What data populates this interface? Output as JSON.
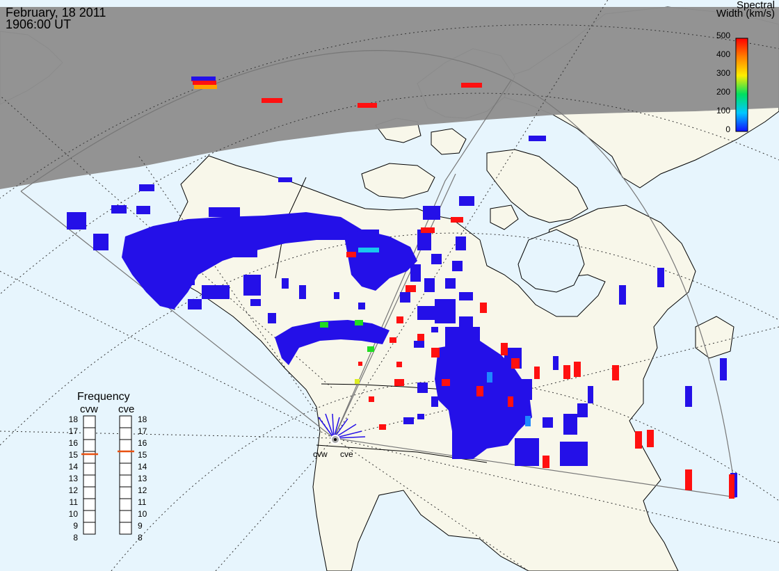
{
  "header": {
    "date": "February, 18 2011",
    "time": "1906:00 UT"
  },
  "colorbar": {
    "title_line1": "Spectral",
    "title_line2": "Width (km/s)",
    "ticks": [
      "500",
      "400",
      "300",
      "200",
      "100",
      "0"
    ]
  },
  "frequency_panel": {
    "title": "Frequency",
    "radars": [
      {
        "name": "cvw",
        "selected": "15"
      },
      {
        "name": "cve",
        "selected": "15"
      }
    ],
    "levels": [
      "18",
      "17",
      "16",
      "15",
      "14",
      "13",
      "12",
      "11",
      "10",
      "9",
      "8"
    ]
  },
  "stations": [
    {
      "name": "cvw"
    },
    {
      "name": "cve"
    }
  ],
  "colors": {
    "night": "#909090",
    "ocean": "#e7f5fd",
    "land": "#f8f7ea",
    "scatter": "#2410e8",
    "high_width": "#ff1010",
    "medium_width": "#ffb000",
    "low_width": "#22dd22",
    "cyan_width": "#19c7ee"
  }
}
